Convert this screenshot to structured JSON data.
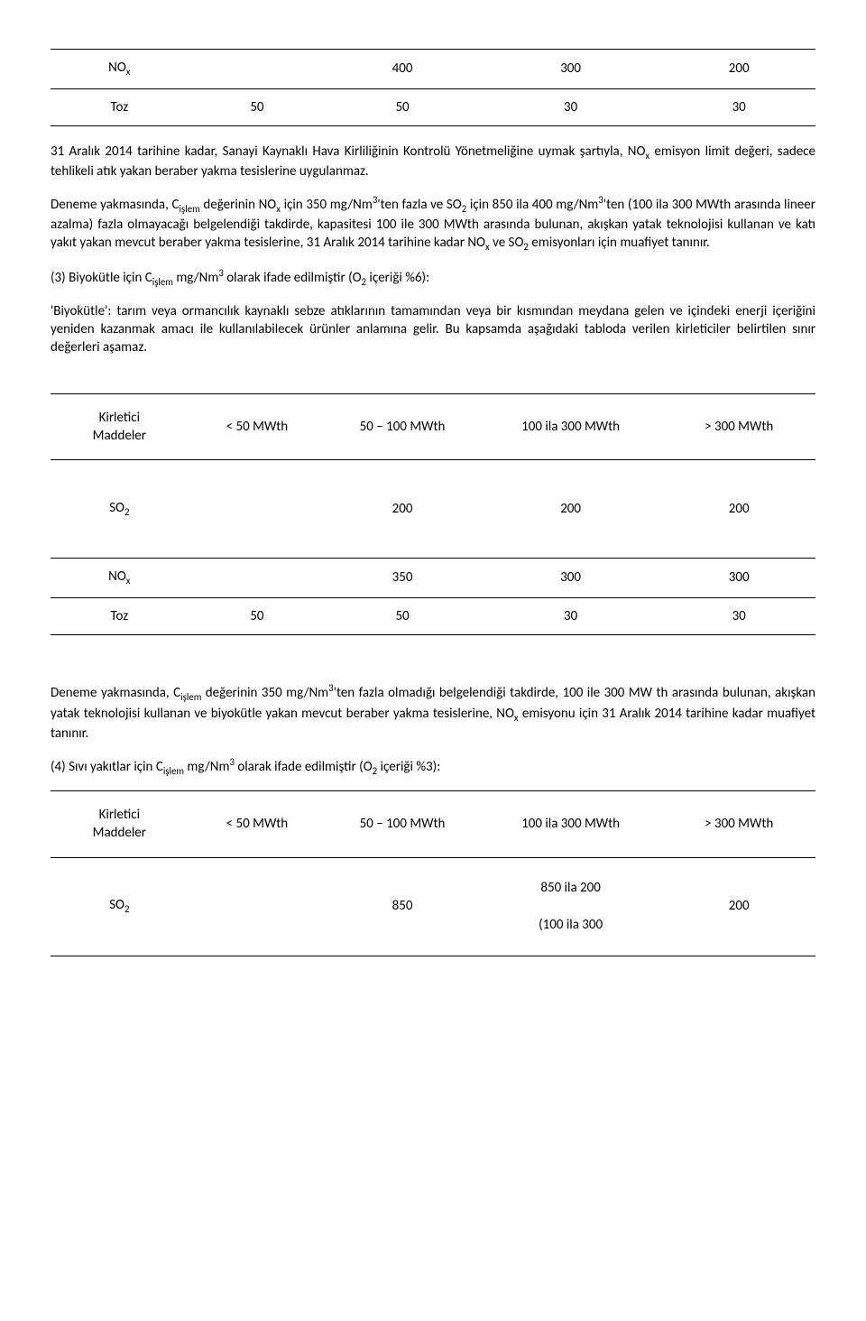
{
  "table1": {
    "rows": [
      {
        "label_html": "NO<span class='sub'>x</span>",
        "c1": "",
        "c2": "400",
        "c3": "300",
        "c4": "200"
      },
      {
        "label_html": "Toz",
        "c1": "50",
        "c2": "50",
        "c3": "30",
        "c4": "30"
      }
    ]
  },
  "para1_html": "31 Aralık 2014 tarihine kadar, Sanayi Kaynaklı Hava Kirliliğinin Kontrolü Yönetmeliğine uymak şartıyla, NO<span class='sub'>x</span> emisyon limit değeri, sadece tehlikeli atık yakan beraber yakma tesislerine uygulanmaz.",
  "para2_html": "Deneme yakmasında, C<span class='sub'>işlem</span> değerinin NO<span class='sub'>x</span> için 350 mg/Nm<span class='sup'>3</span>'ten fazla ve SO<span class='sub'>2</span> için 850 ila 400 mg/Nm<span class='sup'>3</span>'ten (100 ila 300 MWth arasında lineer azalma) fazla olmayacağı belgelendiği takdirde, kapasitesi 100 ile 300 MWth arasında bulunan, akışkan yatak teknolojisi kullanan ve katı yakıt yakan mevcut beraber yakma tesislerine,  31 Aralık 2014 tarihine kadar NO<span class='sub'>x</span> ve SO<span class='sub'>2</span>  emisyonları için muafiyet tanınır.",
  "para3_html": "(3) Biyokütle için C<span class='sub'>işlem</span> mg/Nm<span class='sup'>3</span> olarak ifade edilmiştir (O<span class='sub'>2</span> içeriği %6):",
  "para4_html": "'Biyokütle': tarım veya ormancılık kaynaklı sebze atıklarının tamamından veya bir kısmından meydana gelen ve içindeki enerji içeriğini yeniden kazanmak amacı ile kullanılabilecek ürünler anlamına gelir. Bu kapsamda aşağıdaki tabloda verilen kirleticiler belirtilen sınır değerleri aşamaz.",
  "table2": {
    "header": {
      "h1_html": "Kirletici<br>Maddeler",
      "h2": "< 50 MWth",
      "h3": "50 – 100 MWth",
      "h4": "100 ila 300 MWth",
      "h5": "> 300 MWth"
    },
    "rows": [
      {
        "label_html": "SO<span class='sub'>2</span>",
        "c1": "",
        "c2": "200",
        "c3": "200",
        "c4": "200",
        "tall": true
      },
      {
        "label_html": "NO<span class='sub'>x</span>",
        "c1": "",
        "c2": "350",
        "c3": "300",
        "c4": "300"
      },
      {
        "label_html": "Toz",
        "c1": "50",
        "c2": "50",
        "c3": "30",
        "c4": "30"
      }
    ]
  },
  "para5_html": "Deneme yakmasında, C<span class='sub'>işlem</span> değerinin 350 mg/Nm<span class='sup'>3</span>'ten fazla olmadığı belgelendiği takdirde, 100 ile 300 MW th arasında bulunan, akışkan yatak teknolojisi kullanan ve biyokütle yakan mevcut beraber yakma tesislerine, NO<span class='sub'>x</span> emisyonu için 31 Aralık 2014 tarihine kadar muafiyet tanınır.",
  "para6_html": "(4) Sıvı yakıtlar için C<span class='sub'>işlem</span> mg/Nm<span class='sup'>3</span> olarak ifade edilmiştir (O<span class='sub'>2</span> içeriği %3):",
  "table3": {
    "header": {
      "h1_html": "Kirletici<br>Maddeler",
      "h2": "< 50 MWth",
      "h3": "50 – 100 MWth",
      "h4": "100 ila 300 MWth",
      "h5": "> 300 MWth"
    },
    "rows": [
      {
        "label_html": "SO<span class='sub'>2</span>",
        "c1": "",
        "c2": "850",
        "c3_html": "850 ila 200<br><br>(100 ila 300",
        "c4": "200",
        "tall": true
      }
    ]
  }
}
